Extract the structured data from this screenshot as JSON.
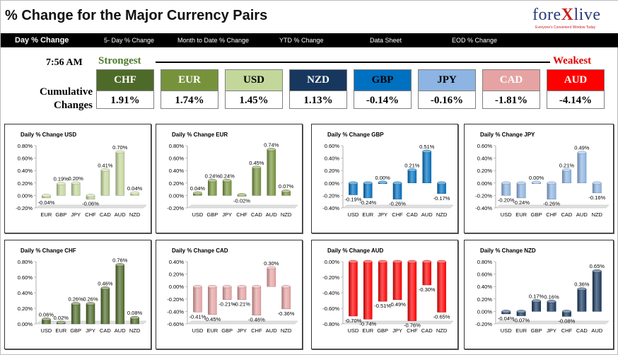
{
  "header": {
    "title": "% Change for the Major Currency Pairs",
    "logo_text_pre": "fore",
    "logo_text_x": "X",
    "logo_text_post": "live",
    "logo_tagline": "Everyone's Convenient Window Today"
  },
  "nav": [
    "Day % Change",
    "5- Day % Change",
    "Month to Date % Change",
    "YTD % Change",
    "Data Sheet",
    "EOD % Change"
  ],
  "summary": {
    "time": "7:56 AM",
    "strongest_label": "Strongest",
    "weakest_label": "Weakest",
    "cumulative_label_1": "Cumulative",
    "cumulative_label_2": "Changes",
    "currencies": [
      {
        "name": "CHF",
        "value": "1.91%",
        "bg": "#4e6a28",
        "fg": "#ffffff"
      },
      {
        "name": "EUR",
        "value": "1.74%",
        "bg": "#76933c",
        "fg": "#ffffff"
      },
      {
        "name": "USD",
        "value": "1.45%",
        "bg": "#c4d79b",
        "fg": "#000000"
      },
      {
        "name": "NZD",
        "value": "1.13%",
        "bg": "#17375e",
        "fg": "#ffffff"
      },
      {
        "name": "GBP",
        "value": "-0.14%",
        "bg": "#0070c0",
        "fg": "#000000"
      },
      {
        "name": "JPY",
        "value": "-0.16%",
        "bg": "#8db4e2",
        "fg": "#000000"
      },
      {
        "name": "CAD",
        "value": "-1.81%",
        "bg": "#e6a3a3",
        "fg": "#ffffff"
      },
      {
        "name": "AUD",
        "value": "-4.14%",
        "bg": "#ff0000",
        "fg": "#ffffff"
      }
    ]
  },
  "chart_data": [
    {
      "type": "bar",
      "title": "Daily % Change USD",
      "categories": [
        "EUR",
        "GBP",
        "JPY",
        "CHF",
        "CAD",
        "AUD",
        "NZD"
      ],
      "values": [
        -0.04,
        0.19,
        0.2,
        -0.06,
        0.41,
        0.7,
        0.04
      ],
      "data_labels": [
        "-0.04%",
        "0.19%",
        "0.20%",
        "-0.06%",
        "0.41%",
        "0.70%",
        "0.04%"
      ],
      "ylim": [
        -0.2,
        0.8
      ],
      "ytick_labels": [
        "-0.20%",
        "0.00%",
        "0.20%",
        "0.40%",
        "0.60%",
        "0.80%"
      ],
      "color": "#c4d79b"
    },
    {
      "type": "bar",
      "title": "Daily % Change EUR",
      "categories": [
        "USD",
        "GBP",
        "JPY",
        "CHF",
        "CAD",
        "AUD",
        "NZD"
      ],
      "values": [
        0.04,
        0.24,
        0.24,
        -0.02,
        0.45,
        0.74,
        0.07
      ],
      "data_labels": [
        "0.04%",
        "0.24%",
        "0.24%",
        "-0.02%",
        "0.45%",
        "0.74%",
        "0.07%"
      ],
      "ylim": [
        -0.2,
        0.8
      ],
      "ytick_labels": [
        "-0.20%",
        "0.00%",
        "0.20%",
        "0.40%",
        "0.60%",
        "0.80%"
      ],
      "color": "#76933c"
    },
    {
      "type": "bar",
      "title": "Daily % Change GBP",
      "categories": [
        "USD",
        "EUR",
        "JPY",
        "CHF",
        "CAD",
        "AUD",
        "NZD"
      ],
      "values": [
        -0.19,
        -0.24,
        0.0,
        -0.26,
        0.21,
        0.51,
        -0.17
      ],
      "data_labels": [
        "-0.19%",
        "-0.24%",
        "0.00%",
        "-0.26%",
        "0.21%",
        "0.51%",
        "-0.17%"
      ],
      "ylim": [
        -0.4,
        0.6
      ],
      "ytick_labels": [
        "-0.40%",
        "-0.20%",
        "0.00%",
        "0.20%",
        "0.40%",
        "0.60%"
      ],
      "color": "#0070c0"
    },
    {
      "type": "bar",
      "title": "Daily % Change JPY",
      "categories": [
        "USD",
        "EUR",
        "GBP",
        "CHF",
        "CAD",
        "AUD",
        "NZD"
      ],
      "values": [
        -0.2,
        -0.24,
        0.0,
        -0.26,
        0.21,
        0.49,
        -0.16
      ],
      "data_labels": [
        "-0.20%",
        "-0.24%",
        "0.00%",
        "-0.26%",
        "0.21%",
        "0.49%",
        "-0.16%"
      ],
      "ylim": [
        -0.4,
        0.6
      ],
      "ytick_labels": [
        "-0.40%",
        "-0.20%",
        "0.00%",
        "0.20%",
        "0.40%",
        "0.60%"
      ],
      "color": "#8db4e2"
    },
    {
      "type": "bar",
      "title": "Daily % Change CHF",
      "categories": [
        "USD",
        "EUR",
        "GBP",
        "JPY",
        "CAD",
        "AUD",
        "NZD"
      ],
      "values": [
        0.06,
        0.02,
        0.26,
        0.26,
        0.46,
        0.76,
        0.08
      ],
      "data_labels": [
        "0.06%",
        "0.02%",
        "0.26%",
        "0.26%",
        "0.46%",
        "0.76%",
        "0.08%"
      ],
      "ylim": [
        0.0,
        0.8
      ],
      "ytick_labels": [
        "0.00%",
        "0.20%",
        "0.40%",
        "0.60%",
        "0.80%"
      ],
      "color": "#4e6a28"
    },
    {
      "type": "bar",
      "title": "Daily % Change CAD",
      "categories": [
        "USD",
        "EUR",
        "GBP",
        "JPY",
        "CHF",
        "AUD",
        "NZD"
      ],
      "values": [
        -0.41,
        -0.45,
        -0.21,
        -0.21,
        -0.46,
        0.3,
        -0.36
      ],
      "data_labels": [
        "-0.41%",
        "-0.45%",
        "-0.21%",
        "-0.21%",
        "-0.46%",
        "0.30%",
        "-0.36%"
      ],
      "ylim": [
        -0.6,
        0.4
      ],
      "ytick_labels": [
        "-0.60%",
        "-0.40%",
        "-0.20%",
        "0.00%",
        "0.20%",
        "0.40%"
      ],
      "color": "#e6a3a3"
    },
    {
      "type": "bar",
      "title": "Daily % Change AUD",
      "categories": [
        "USD",
        "EUR",
        "GBP",
        "JPY",
        "CHF",
        "CAD",
        "NZD"
      ],
      "values": [
        -0.7,
        -0.74,
        -0.51,
        -0.49,
        -0.76,
        -0.3,
        -0.65
      ],
      "data_labels": [
        "-0.70%",
        "-0.74%",
        "-0.51%",
        "-0.49%",
        "-0.76%",
        "-0.30%",
        "-0.65%"
      ],
      "ylim": [
        -0.8,
        0.0
      ],
      "ytick_labels": [
        "-0.80%",
        "-0.60%",
        "-0.40%",
        "-0.20%",
        "0.00%"
      ],
      "color": "#ff0000"
    },
    {
      "type": "bar",
      "title": "Daily % Change NZD",
      "categories": [
        "USD",
        "EUR",
        "GBP",
        "JPY",
        "CHF",
        "CAD",
        "AUD"
      ],
      "values": [
        -0.04,
        -0.07,
        0.17,
        0.16,
        -0.08,
        0.36,
        0.65
      ],
      "data_labels": [
        "-0.04%",
        "-0.07%",
        "0.17%",
        "0.16%",
        "-0.08%",
        "0.36%",
        "0.65%"
      ],
      "ylim": [
        -0.2,
        0.8
      ],
      "ytick_labels": [
        "-0.20%",
        "0.00%",
        "0.20%",
        "0.40%",
        "0.60%",
        "0.80%"
      ],
      "color": "#17375e"
    }
  ]
}
